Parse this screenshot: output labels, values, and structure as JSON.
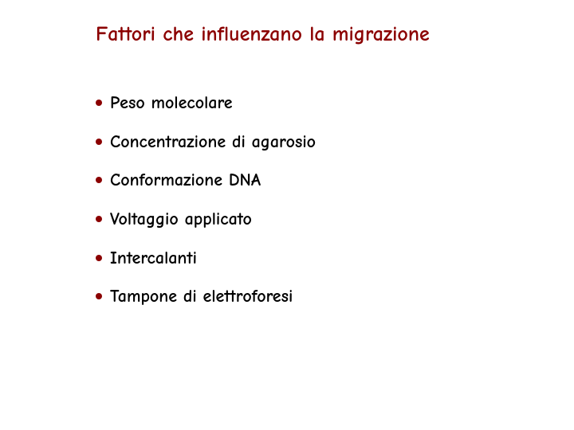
{
  "title": "Fattori che influenzano la migrazione",
  "bullets": [
    "Peso molecolare",
    "Concentrazione di agarosio",
    "Conformazione DNA",
    "Voltaggio applicato",
    "Intercalanti",
    "Tampone di elettroforesi"
  ],
  "styling": {
    "background_color": "#ffffff",
    "title_color": "#8b0000",
    "bullet_color": "#8b0000",
    "text_color": "#000000",
    "title_fontsize": 26,
    "bullet_fontsize": 22,
    "title_weight": "bold",
    "bullet_weight": "bold",
    "font_family": "Comic Sans MS",
    "bullet_dot_size": 8,
    "bullet_gap": 20,
    "title_margin_bottom": 56
  }
}
